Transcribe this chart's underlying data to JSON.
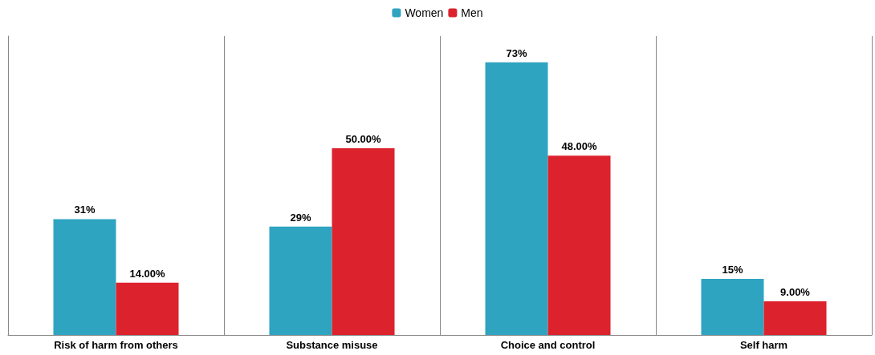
{
  "chart_data": {
    "type": "bar",
    "categories": [
      "Risk of harm from others",
      "Substance misuse",
      "Choice and control",
      "Self harm"
    ],
    "series": [
      {
        "name": "Women",
        "color": "#2fa4c0",
        "values": [
          31,
          29,
          73,
          15
        ],
        "value_labels": [
          "31%",
          "29%",
          "73%",
          "15%"
        ]
      },
      {
        "name": "Men",
        "color": "#dc222c",
        "values": [
          14,
          50,
          48,
          9
        ],
        "value_labels": [
          "14.00%",
          "50.00%",
          "48.00%",
          "9.00%"
        ]
      }
    ],
    "grid": "x",
    "legend": "top"
  }
}
